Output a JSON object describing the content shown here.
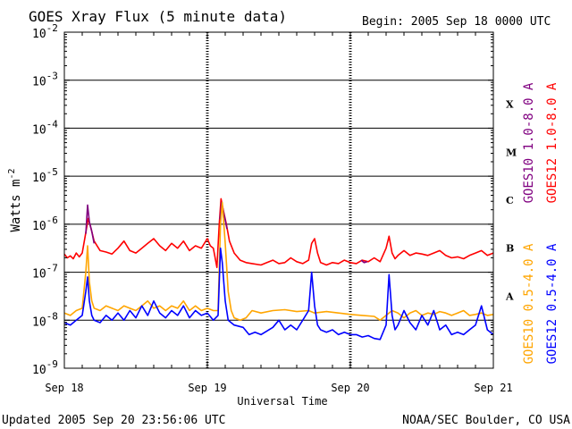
{
  "chart_data": {
    "type": "line",
    "title": "GOES Xray Flux (5 minute data)",
    "begin_label": "Begin:  2005 Sep 18 0000 UTC",
    "xlabel": "Universal Time",
    "ylabel_base": "Watts m",
    "ylabel_exp": "-2",
    "y_scale": "log",
    "ylim_exp": [
      -9,
      -2
    ],
    "y_ticks": [
      {
        "exp": -2,
        "base": "10",
        "sup": "-2"
      },
      {
        "exp": -3,
        "base": "10",
        "sup": "-3"
      },
      {
        "exp": -4,
        "base": "10",
        "sup": "-4"
      },
      {
        "exp": -5,
        "base": "10",
        "sup": "-5"
      },
      {
        "exp": -6,
        "base": "10",
        "sup": "-6"
      },
      {
        "exp": -7,
        "base": "10",
        "sup": "-7"
      },
      {
        "exp": -8,
        "base": "10",
        "sup": "-8"
      },
      {
        "exp": -9,
        "base": "10",
        "sup": "-9"
      }
    ],
    "x_unit": "hours since 2005 Sep 18 0000 UTC",
    "xlim": [
      0,
      72
    ],
    "x_ticks": [
      {
        "x": 0,
        "label": "Sep 18"
      },
      {
        "x": 24,
        "label": "Sep 19"
      },
      {
        "x": 48,
        "label": "Sep 20"
      },
      {
        "x": 72,
        "label": "Sep 21"
      }
    ],
    "class_levels": [
      {
        "label": "X",
        "exp": -3.5
      },
      {
        "label": "M",
        "exp": -4.5
      },
      {
        "label": "C",
        "exp": -5.5
      },
      {
        "label": "B",
        "exp": -6.5
      },
      {
        "label": "A",
        "exp": -7.5
      }
    ],
    "grid_horizontal_exp": [
      -3,
      -4,
      -5,
      -6,
      -7,
      -8
    ],
    "series": [
      {
        "name": "GOES12 1.0-8.0 A",
        "color": "#ff0000",
        "points": [
          [
            0,
            -6.62
          ],
          [
            0.5,
            -6.7
          ],
          [
            1,
            -6.66
          ],
          [
            1.5,
            -6.72
          ],
          [
            2,
            -6.6
          ],
          [
            2.5,
            -6.68
          ],
          [
            3,
            -6.6
          ],
          [
            3.5,
            -6.25
          ],
          [
            4,
            -5.88
          ],
          [
            4.5,
            -6.1
          ],
          [
            5,
            -6.35
          ],
          [
            6,
            -6.55
          ],
          [
            7,
            -6.58
          ],
          [
            8,
            -6.62
          ],
          [
            9,
            -6.5
          ],
          [
            10,
            -6.35
          ],
          [
            11,
            -6.55
          ],
          [
            12,
            -6.6
          ],
          [
            13,
            -6.5
          ],
          [
            14,
            -6.4
          ],
          [
            15,
            -6.3
          ],
          [
            16,
            -6.45
          ],
          [
            17,
            -6.55
          ],
          [
            18,
            -6.4
          ],
          [
            19,
            -6.5
          ],
          [
            20,
            -6.35
          ],
          [
            21,
            -6.55
          ],
          [
            22,
            -6.45
          ],
          [
            23,
            -6.5
          ],
          [
            24,
            -6.3
          ],
          [
            24.5,
            -6.45
          ],
          [
            25,
            -6.5
          ],
          [
            25.6,
            -6.9
          ],
          [
            26,
            -6.0
          ],
          [
            26.3,
            -5.47
          ],
          [
            26.7,
            -5.72
          ],
          [
            27.2,
            -6.0
          ],
          [
            27.7,
            -6.35
          ],
          [
            28.5,
            -6.6
          ],
          [
            29.5,
            -6.75
          ],
          [
            30.5,
            -6.8
          ],
          [
            31.5,
            -6.82
          ],
          [
            33,
            -6.85
          ],
          [
            34,
            -6.8
          ],
          [
            35,
            -6.75
          ],
          [
            36,
            -6.82
          ],
          [
            37,
            -6.8
          ],
          [
            38,
            -6.7
          ],
          [
            39,
            -6.78
          ],
          [
            40,
            -6.82
          ],
          [
            41,
            -6.75
          ],
          [
            41.5,
            -6.4
          ],
          [
            42,
            -6.3
          ],
          [
            42.5,
            -6.6
          ],
          [
            43,
            -6.8
          ],
          [
            44,
            -6.85
          ],
          [
            45,
            -6.8
          ],
          [
            46,
            -6.82
          ],
          [
            47,
            -6.75
          ],
          [
            48,
            -6.8
          ],
          [
            49,
            -6.82
          ],
          [
            50,
            -6.75
          ],
          [
            51,
            -6.78
          ],
          [
            52,
            -6.7
          ],
          [
            53,
            -6.78
          ],
          [
            54,
            -6.5
          ],
          [
            54.5,
            -6.25
          ],
          [
            55,
            -6.6
          ],
          [
            55.5,
            -6.72
          ],
          [
            56,
            -6.65
          ],
          [
            57,
            -6.55
          ],
          [
            58,
            -6.65
          ],
          [
            59,
            -6.6
          ],
          [
            60,
            -6.62
          ],
          [
            61,
            -6.65
          ],
          [
            62,
            -6.6
          ],
          [
            63,
            -6.55
          ],
          [
            64,
            -6.65
          ],
          [
            65,
            -6.7
          ],
          [
            66,
            -6.68
          ],
          [
            67,
            -6.72
          ],
          [
            68,
            -6.65
          ],
          [
            69,
            -6.6
          ],
          [
            70,
            -6.55
          ],
          [
            71,
            -6.65
          ],
          [
            72,
            -6.6
          ]
        ]
      },
      {
        "name": "GOES10 1.0-8.0 A",
        "color": "#800080",
        "points": [
          [
            3.6,
            -6.2
          ],
          [
            3.9,
            -5.6
          ],
          [
            4.2,
            -5.95
          ],
          [
            4.6,
            -6.15
          ],
          [
            5.0,
            -6.4
          ],
          [
            26.1,
            -5.9
          ],
          [
            26.4,
            -5.55
          ],
          [
            26.8,
            -5.8
          ],
          [
            27.3,
            -6.1
          ],
          [
            49.8,
            -6.75
          ],
          [
            50.3,
            -6.8
          ],
          [
            50.8,
            -6.78
          ]
        ]
      },
      {
        "name": "GOES10 0.5-4.0 A",
        "color": "#ffa500",
        "points": [
          [
            0,
            -7.85
          ],
          [
            1,
            -7.9
          ],
          [
            2,
            -7.8
          ],
          [
            3,
            -7.75
          ],
          [
            3.6,
            -7.0
          ],
          [
            3.9,
            -6.45
          ],
          [
            4.2,
            -7.2
          ],
          [
            4.6,
            -7.6
          ],
          [
            5,
            -7.75
          ],
          [
            6,
            -7.8
          ],
          [
            7,
            -7.7
          ],
          [
            8,
            -7.75
          ],
          [
            9,
            -7.8
          ],
          [
            10,
            -7.7
          ],
          [
            11,
            -7.75
          ],
          [
            12,
            -7.8
          ],
          [
            13,
            -7.7
          ],
          [
            14,
            -7.6
          ],
          [
            15,
            -7.75
          ],
          [
            16,
            -7.7
          ],
          [
            17,
            -7.8
          ],
          [
            18,
            -7.7
          ],
          [
            19,
            -7.75
          ],
          [
            20,
            -7.6
          ],
          [
            21,
            -7.8
          ],
          [
            22,
            -7.7
          ],
          [
            23,
            -7.8
          ],
          [
            24,
            -7.75
          ],
          [
            25,
            -7.8
          ],
          [
            25.8,
            -7.8
          ],
          [
            26.2,
            -6.0
          ],
          [
            26.5,
            -5.55
          ],
          [
            27.0,
            -6.4
          ],
          [
            27.5,
            -7.4
          ],
          [
            28,
            -7.8
          ],
          [
            28.5,
            -7.95
          ],
          [
            29.5,
            -8.0
          ],
          [
            30.5,
            -7.95
          ],
          [
            31.5,
            -7.8
          ],
          [
            33,
            -7.85
          ],
          [
            35,
            -7.8
          ],
          [
            37,
            -7.78
          ],
          [
            39,
            -7.82
          ],
          [
            41,
            -7.8
          ],
          [
            42,
            -7.85
          ],
          [
            44,
            -7.82
          ],
          [
            46,
            -7.85
          ],
          [
            48,
            -7.88
          ],
          [
            50,
            -7.9
          ],
          [
            52,
            -7.92
          ],
          [
            53,
            -8.0
          ],
          [
            54,
            -7.9
          ],
          [
            55,
            -7.8
          ],
          [
            56,
            -7.85
          ],
          [
            57,
            -7.95
          ],
          [
            58,
            -7.85
          ],
          [
            59,
            -7.8
          ],
          [
            60,
            -7.9
          ],
          [
            61,
            -7.85
          ],
          [
            62,
            -7.88
          ],
          [
            63,
            -7.82
          ],
          [
            64,
            -7.85
          ],
          [
            65,
            -7.9
          ],
          [
            66,
            -7.85
          ],
          [
            67,
            -7.8
          ],
          [
            68,
            -7.9
          ],
          [
            69,
            -7.88
          ],
          [
            70,
            -7.85
          ],
          [
            71,
            -7.9
          ],
          [
            72,
            -7.88
          ]
        ]
      },
      {
        "name": "GOES12 0.5-4.0 A",
        "color": "#0000ff",
        "points": [
          [
            0,
            -8.05
          ],
          [
            1,
            -8.1
          ],
          [
            2,
            -8.0
          ],
          [
            3,
            -7.9
          ],
          [
            3.6,
            -7.4
          ],
          [
            3.9,
            -7.1
          ],
          [
            4.2,
            -7.6
          ],
          [
            4.6,
            -7.9
          ],
          [
            5,
            -8.0
          ],
          [
            6,
            -8.05
          ],
          [
            7,
            -7.9
          ],
          [
            8,
            -8.0
          ],
          [
            9,
            -7.85
          ],
          [
            10,
            -8.0
          ],
          [
            11,
            -7.8
          ],
          [
            12,
            -7.95
          ],
          [
            13,
            -7.7
          ],
          [
            14,
            -7.9
          ],
          [
            15,
            -7.6
          ],
          [
            16,
            -7.85
          ],
          [
            17,
            -7.95
          ],
          [
            18,
            -7.8
          ],
          [
            19,
            -7.9
          ],
          [
            20,
            -7.7
          ],
          [
            21,
            -7.95
          ],
          [
            22,
            -7.8
          ],
          [
            23,
            -7.9
          ],
          [
            24,
            -7.85
          ],
          [
            25,
            -8.0
          ],
          [
            25.8,
            -7.9
          ],
          [
            26.2,
            -6.5
          ],
          [
            26.5,
            -6.8
          ],
          [
            27.0,
            -7.6
          ],
          [
            27.5,
            -8.0
          ],
          [
            28.5,
            -8.1
          ],
          [
            30,
            -8.15
          ],
          [
            31,
            -8.3
          ],
          [
            32,
            -8.25
          ],
          [
            33,
            -8.3
          ],
          [
            35,
            -8.15
          ],
          [
            36,
            -8.0
          ],
          [
            37,
            -8.2
          ],
          [
            38,
            -8.1
          ],
          [
            39,
            -8.2
          ],
          [
            40,
            -8.0
          ],
          [
            41,
            -7.8
          ],
          [
            41.5,
            -7.0
          ],
          [
            42,
            -7.7
          ],
          [
            42.5,
            -8.1
          ],
          [
            43,
            -8.2
          ],
          [
            44,
            -8.25
          ],
          [
            45,
            -8.2
          ],
          [
            46,
            -8.3
          ],
          [
            47,
            -8.25
          ],
          [
            48,
            -8.3
          ],
          [
            49,
            -8.3
          ],
          [
            50,
            -8.35
          ],
          [
            51,
            -8.32
          ],
          [
            52,
            -8.38
          ],
          [
            53,
            -8.4
          ],
          [
            54,
            -8.1
          ],
          [
            54.5,
            -7.05
          ],
          [
            55,
            -7.9
          ],
          [
            55.5,
            -8.2
          ],
          [
            56,
            -8.1
          ],
          [
            57,
            -7.8
          ],
          [
            58,
            -8.05
          ],
          [
            59,
            -8.2
          ],
          [
            60,
            -7.9
          ],
          [
            61,
            -8.1
          ],
          [
            62,
            -7.8
          ],
          [
            63,
            -8.2
          ],
          [
            64,
            -8.1
          ],
          [
            65,
            -8.3
          ],
          [
            66,
            -8.25
          ],
          [
            67,
            -8.3
          ],
          [
            68,
            -8.2
          ],
          [
            69,
            -8.1
          ],
          [
            70,
            -7.7
          ],
          [
            71,
            -8.2
          ],
          [
            72,
            -8.3
          ]
        ]
      }
    ],
    "legend_placement": "right-vertical",
    "grid": true
  },
  "footer": {
    "updated": "Updated 2005 Sep 20 23:56:06 UTC",
    "source": "NOAA/SEC Boulder, CO USA"
  }
}
